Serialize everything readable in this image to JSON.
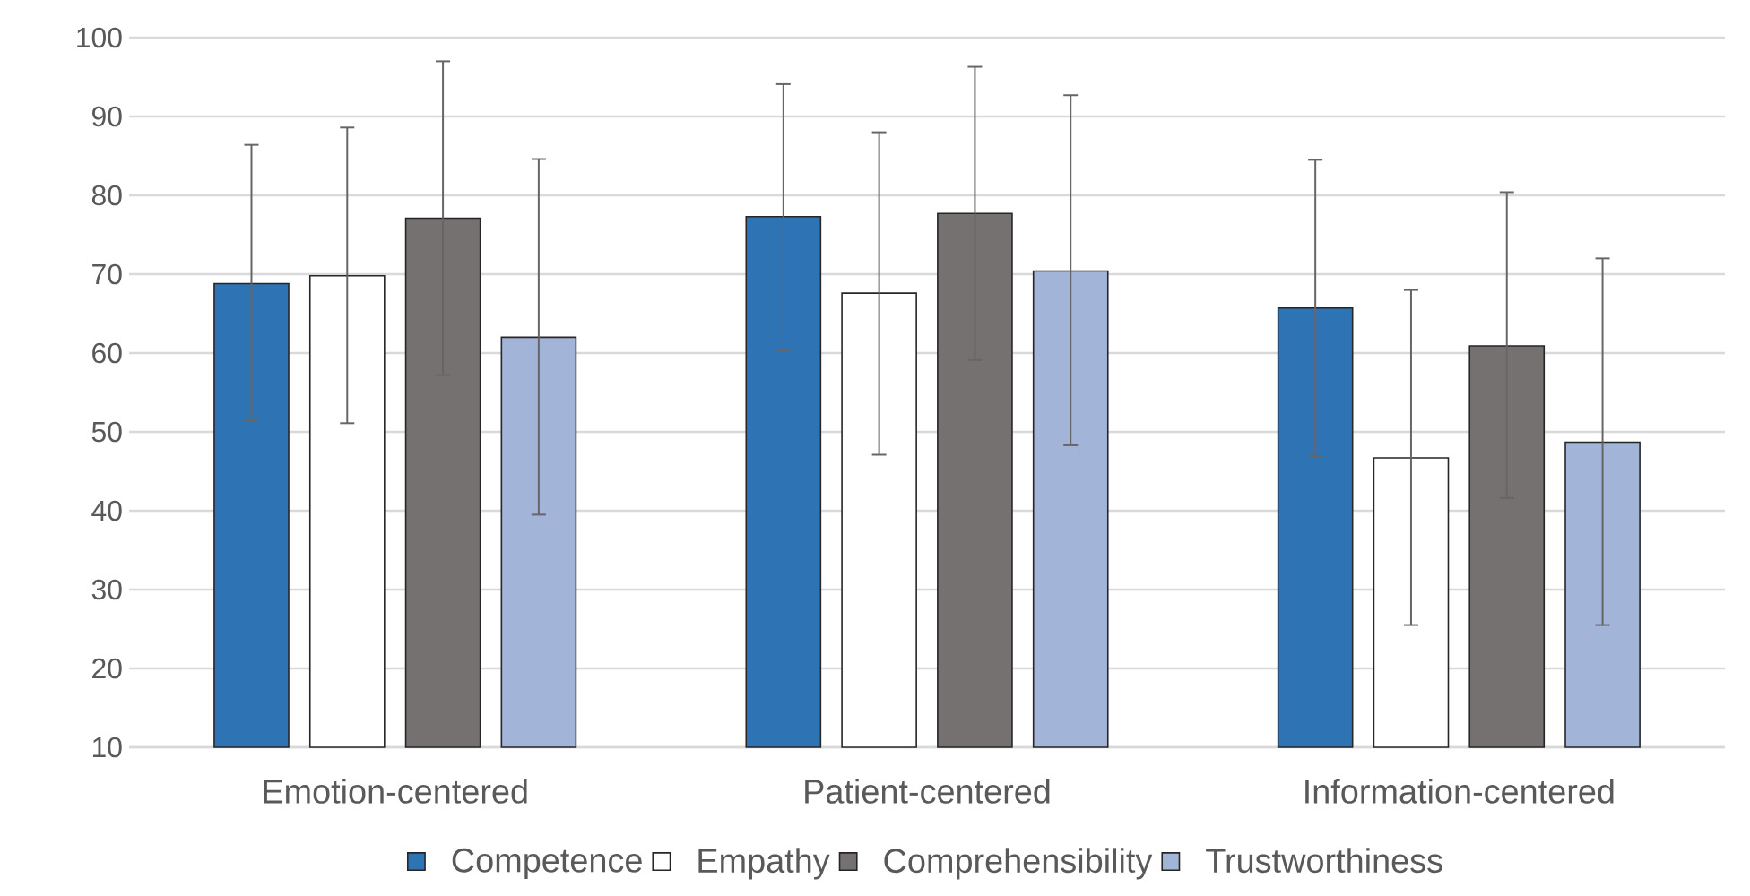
{
  "chart_data": {
    "type": "bar",
    "categories": [
      "Emotion-centered",
      "Patient-centered",
      "Information-centered"
    ],
    "series": [
      {
        "name": "Competence",
        "color": "#2e74b5",
        "values": [
          68.8,
          77.3,
          65.7
        ],
        "errors": [
          [
            51.4,
            86.4
          ],
          [
            60.3,
            94.1
          ],
          [
            46.9,
            84.5
          ]
        ]
      },
      {
        "name": "Empathy",
        "color": "#ffffff",
        "values": [
          69.8,
          67.6,
          46.7
        ],
        "errors": [
          [
            51.1,
            88.6
          ],
          [
            47.1,
            88.0
          ],
          [
            25.5,
            68.0
          ]
        ]
      },
      {
        "name": "Comprehensibility",
        "color": "#757170",
        "values": [
          77.1,
          77.7,
          60.9
        ],
        "errors": [
          [
            57.2,
            97.0
          ],
          [
            59.1,
            96.3
          ],
          [
            41.6,
            80.4
          ]
        ]
      },
      {
        "name": "Trustworthiness",
        "color": "#a2b4d8",
        "values": [
          62.0,
          70.4,
          48.7
        ],
        "errors": [
          [
            39.5,
            84.6
          ],
          [
            48.3,
            92.7
          ],
          [
            25.5,
            72.0
          ]
        ]
      }
    ],
    "ylim": [
      10,
      100
    ],
    "yticks": [
      10,
      20,
      30,
      40,
      50,
      60,
      70,
      80,
      90,
      100
    ],
    "grid": "y",
    "legend": "bottom"
  }
}
